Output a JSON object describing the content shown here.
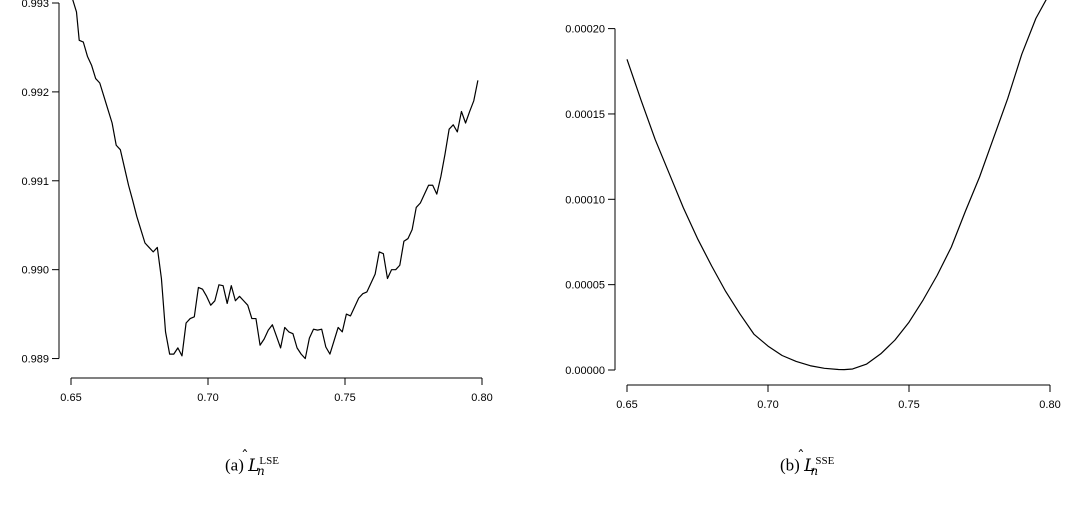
{
  "chart_data": [
    {
      "type": "line",
      "caption": {
        "label": "(a)",
        "symbol": "L",
        "superscript": "LSE",
        "subscript": "n"
      },
      "xlim": [
        0.65,
        0.8
      ],
      "ylim": [
        0.98895,
        0.993
      ],
      "x_ticks": [
        "0.65",
        "0.70",
        "0.75",
        "0.80"
      ],
      "y_ticks": [
        "0.989",
        "0.990",
        "0.991",
        "0.992",
        "0.993"
      ],
      "grid": false,
      "series": [
        {
          "x": [
            0.65,
            0.652,
            0.653,
            0.6545,
            0.656,
            0.6575,
            0.659,
            0.6605,
            0.662,
            0.6635,
            0.665,
            0.6665,
            0.668,
            0.6695,
            0.671,
            0.6725,
            0.674,
            0.6755,
            0.677,
            0.6785,
            0.68,
            0.6815,
            0.683,
            0.6845,
            0.686,
            0.6875,
            0.689,
            0.6905,
            0.692,
            0.6935,
            0.695,
            0.6965,
            0.698,
            0.6995,
            0.701,
            0.7025,
            0.704,
            0.7055,
            0.707,
            0.7085,
            0.71,
            0.7115,
            0.713,
            0.7145,
            0.716,
            0.7175,
            0.719,
            0.7205,
            0.722,
            0.7235,
            0.725,
            0.7265,
            0.728,
            0.7295,
            0.731,
            0.7325,
            0.734,
            0.7355,
            0.737,
            0.7385,
            0.74,
            0.7415,
            0.743,
            0.7445,
            0.746,
            0.7475,
            0.749,
            0.7505,
            0.752,
            0.7535,
            0.755,
            0.7565,
            0.758,
            0.7595,
            0.761,
            0.7625,
            0.764,
            0.7655,
            0.767,
            0.7685,
            0.77,
            0.7715,
            0.773,
            0.7745,
            0.776,
            0.7775,
            0.779,
            0.7805,
            0.782,
            0.7835,
            0.785,
            0.7865,
            0.788,
            0.7895,
            0.791,
            0.7925,
            0.794,
            0.7955,
            0.797,
            0.7985
          ],
          "y": [
            0.9931,
            0.9929,
            0.99258,
            0.99256,
            0.9924,
            0.9923,
            0.99215,
            0.9921,
            0.99195,
            0.9918,
            0.99165,
            0.9914,
            0.99135,
            0.99115,
            0.99095,
            0.99078,
            0.9906,
            0.99045,
            0.9903,
            0.99025,
            0.9902,
            0.99025,
            0.9899,
            0.9893,
            0.98905,
            0.98905,
            0.98912,
            0.98903,
            0.9894,
            0.98945,
            0.98947,
            0.9898,
            0.98978,
            0.9897,
            0.9896,
            0.98965,
            0.98983,
            0.98982,
            0.98962,
            0.98982,
            0.98965,
            0.9897,
            0.98965,
            0.9896,
            0.98945,
            0.98945,
            0.98915,
            0.98922,
            0.98932,
            0.98938,
            0.98925,
            0.98912,
            0.98935,
            0.9893,
            0.98928,
            0.98912,
            0.98905,
            0.989,
            0.98923,
            0.98933,
            0.98932,
            0.98933,
            0.98913,
            0.98905,
            0.9892,
            0.98935,
            0.9893,
            0.9895,
            0.98948,
            0.98958,
            0.98968,
            0.98973,
            0.98975,
            0.98985,
            0.98995,
            0.9902,
            0.99018,
            0.9899,
            0.99,
            0.99,
            0.99005,
            0.99032,
            0.99035,
            0.99045,
            0.9907,
            0.99075,
            0.99085,
            0.99095,
            0.99095,
            0.99085,
            0.99105,
            0.9913,
            0.99158,
            0.99163,
            0.99155,
            0.99178,
            0.99165,
            0.99178,
            0.9919,
            0.99213
          ]
        }
      ]
    },
    {
      "type": "line",
      "caption": {
        "label": "(b)",
        "symbol": "L",
        "superscript": "SSE",
        "subscript": "n"
      },
      "xlim": [
        0.65,
        0.8
      ],
      "ylim": [
        0.0,
        0.000215
      ],
      "x_ticks": [
        "0.65",
        "0.70",
        "0.75",
        "0.80"
      ],
      "y_ticks": [
        "0.00000",
        "0.00005",
        "0.00010",
        "0.00015",
        "0.00020"
      ],
      "grid": false,
      "series": [
        {
          "x": [
            0.65,
            0.655,
            0.66,
            0.665,
            0.67,
            0.675,
            0.68,
            0.685,
            0.69,
            0.695,
            0.7,
            0.705,
            0.71,
            0.715,
            0.72,
            0.725,
            0.727,
            0.73,
            0.735,
            0.74,
            0.745,
            0.75,
            0.755,
            0.76,
            0.765,
            0.77,
            0.775,
            0.78,
            0.785,
            0.79,
            0.795,
            0.799
          ],
          "y": [
            0.000182,
            0.000158,
            0.000135,
            0.000115,
            9.5e-05,
            7.7e-05,
            6.1e-05,
            4.6e-05,
            3.3e-05,
            2.1e-05,
            1.4e-05,
            8.5e-06,
            5e-06,
            2.5e-06,
            1e-06,
            3e-07,
            2e-07,
            6e-07,
            3.5e-06,
            9.5e-06,
            1.75e-05,
            2.8e-05,
            4.1e-05,
            5.55e-05,
            7.2e-05,
            9.3e-05,
            0.000113,
            0.000136,
            0.000159,
            0.000185,
            0.000206,
            0.000218
          ]
        }
      ]
    }
  ]
}
